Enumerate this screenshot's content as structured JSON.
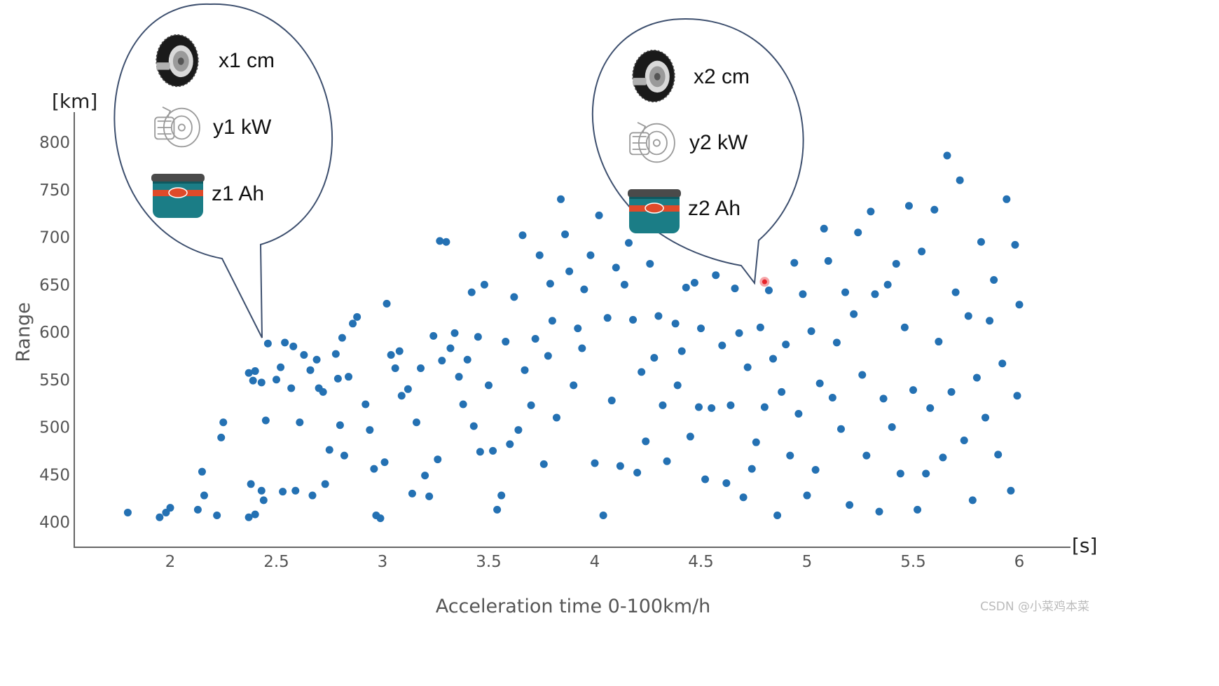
{
  "chart_data": {
    "type": "scatter",
    "xlabel": "Acceleration time 0-100km/h",
    "ylabel": "Range",
    "x_unit": "[s]",
    "y_unit": "[km]",
    "xlim": [
      1.55,
      6.25
    ],
    "ylim": [
      372,
      832
    ],
    "x_ticks": [
      2,
      2.5,
      3,
      3.5,
      4,
      4.5,
      5,
      5.5,
      6
    ],
    "y_ticks": [
      400,
      450,
      500,
      550,
      600,
      650,
      700,
      750,
      800
    ],
    "grid": false,
    "point_color": "#2471b3",
    "highlight_color": "#e8232a",
    "highlight_point": [
      4.8,
      653
    ],
    "points": [
      [
        1.8,
        410
      ],
      [
        1.95,
        405
      ],
      [
        1.98,
        410
      ],
      [
        2.0,
        415
      ],
      [
        2.13,
        413
      ],
      [
        2.15,
        453
      ],
      [
        2.16,
        428
      ],
      [
        2.22,
        407
      ],
      [
        2.24,
        489
      ],
      [
        2.25,
        505
      ],
      [
        2.37,
        405
      ],
      [
        2.37,
        557
      ],
      [
        2.38,
        440
      ],
      [
        2.39,
        549
      ],
      [
        2.4,
        408
      ],
      [
        2.4,
        559
      ],
      [
        2.43,
        433
      ],
      [
        2.43,
        547
      ],
      [
        2.44,
        423
      ],
      [
        2.45,
        507
      ],
      [
        2.46,
        588
      ],
      [
        2.5,
        550
      ],
      [
        2.52,
        563
      ],
      [
        2.53,
        432
      ],
      [
        2.54,
        589
      ],
      [
        2.57,
        541
      ],
      [
        2.58,
        585
      ],
      [
        2.59,
        433
      ],
      [
        2.61,
        505
      ],
      [
        2.63,
        576
      ],
      [
        2.66,
        560
      ],
      [
        2.67,
        428
      ],
      [
        2.69,
        571
      ],
      [
        2.7,
        541
      ],
      [
        2.72,
        537
      ],
      [
        2.73,
        440
      ],
      [
        2.75,
        476
      ],
      [
        2.78,
        577
      ],
      [
        2.79,
        551
      ],
      [
        2.8,
        502
      ],
      [
        2.81,
        594
      ],
      [
        2.82,
        470
      ],
      [
        2.84,
        553
      ],
      [
        2.86,
        609
      ],
      [
        2.88,
        616
      ],
      [
        2.92,
        524
      ],
      [
        2.94,
        497
      ],
      [
        2.96,
        456
      ],
      [
        2.97,
        407
      ],
      [
        2.99,
        404
      ],
      [
        3.01,
        463
      ],
      [
        3.02,
        630
      ],
      [
        3.04,
        576
      ],
      [
        3.06,
        562
      ],
      [
        3.08,
        580
      ],
      [
        3.09,
        533
      ],
      [
        3.12,
        540
      ],
      [
        3.14,
        430
      ],
      [
        3.16,
        505
      ],
      [
        3.18,
        562
      ],
      [
        3.2,
        449
      ],
      [
        3.22,
        427
      ],
      [
        3.24,
        596
      ],
      [
        3.26,
        466
      ],
      [
        3.27,
        696
      ],
      [
        3.28,
        570
      ],
      [
        3.3,
        695
      ],
      [
        3.32,
        583
      ],
      [
        3.34,
        599
      ],
      [
        3.36,
        553
      ],
      [
        3.38,
        524
      ],
      [
        3.4,
        571
      ],
      [
        3.42,
        642
      ],
      [
        3.43,
        501
      ],
      [
        3.45,
        595
      ],
      [
        3.46,
        474
      ],
      [
        3.48,
        650
      ],
      [
        3.5,
        544
      ],
      [
        3.52,
        475
      ],
      [
        3.54,
        413
      ],
      [
        3.56,
        428
      ],
      [
        3.58,
        590
      ],
      [
        3.6,
        482
      ],
      [
        3.62,
        637
      ],
      [
        3.64,
        497
      ],
      [
        3.66,
        702
      ],
      [
        3.67,
        560
      ],
      [
        3.7,
        523
      ],
      [
        3.72,
        593
      ],
      [
        3.74,
        681
      ],
      [
        3.76,
        461
      ],
      [
        3.78,
        575
      ],
      [
        3.79,
        651
      ],
      [
        3.8,
        612
      ],
      [
        3.82,
        510
      ],
      [
        3.84,
        740
      ],
      [
        3.86,
        703
      ],
      [
        3.88,
        664
      ],
      [
        3.9,
        544
      ],
      [
        3.92,
        604
      ],
      [
        3.94,
        583
      ],
      [
        3.95,
        645
      ],
      [
        3.98,
        681
      ],
      [
        4.0,
        462
      ],
      [
        4.02,
        723
      ],
      [
        4.04,
        407
      ],
      [
        4.06,
        615
      ],
      [
        4.08,
        528
      ],
      [
        4.1,
        668
      ],
      [
        4.12,
        459
      ],
      [
        4.14,
        650
      ],
      [
        4.16,
        694
      ],
      [
        4.18,
        613
      ],
      [
        4.2,
        452
      ],
      [
        4.22,
        558
      ],
      [
        4.24,
        485
      ],
      [
        4.26,
        672
      ],
      [
        4.28,
        573
      ],
      [
        4.3,
        617
      ],
      [
        4.32,
        523
      ],
      [
        4.34,
        464
      ],
      [
        4.36,
        718
      ],
      [
        4.38,
        609
      ],
      [
        4.39,
        544
      ],
      [
        4.41,
        580
      ],
      [
        4.43,
        647
      ],
      [
        4.45,
        490
      ],
      [
        4.47,
        652
      ],
      [
        4.49,
        521
      ],
      [
        4.5,
        604
      ],
      [
        4.52,
        445
      ],
      [
        4.55,
        520
      ],
      [
        4.57,
        660
      ],
      [
        4.6,
        586
      ],
      [
        4.62,
        441
      ],
      [
        4.64,
        523
      ],
      [
        4.66,
        646
      ],
      [
        4.68,
        599
      ],
      [
        4.7,
        426
      ],
      [
        4.72,
        563
      ],
      [
        4.74,
        456
      ],
      [
        4.76,
        484
      ],
      [
        4.78,
        605
      ],
      [
        4.8,
        521
      ],
      [
        4.82,
        644
      ],
      [
        4.84,
        572
      ],
      [
        4.86,
        407
      ],
      [
        4.88,
        537
      ],
      [
        4.9,
        587
      ],
      [
        4.92,
        470
      ],
      [
        4.94,
        673
      ],
      [
        4.96,
        514
      ],
      [
        4.98,
        640
      ],
      [
        5.0,
        428
      ],
      [
        5.02,
        601
      ],
      [
        5.04,
        455
      ],
      [
        5.06,
        546
      ],
      [
        5.08,
        709
      ],
      [
        5.1,
        675
      ],
      [
        5.12,
        531
      ],
      [
        5.14,
        589
      ],
      [
        5.16,
        498
      ],
      [
        5.18,
        642
      ],
      [
        5.2,
        418
      ],
      [
        5.22,
        619
      ],
      [
        5.24,
        705
      ],
      [
        5.26,
        555
      ],
      [
        5.28,
        470
      ],
      [
        5.3,
        727
      ],
      [
        5.32,
        640
      ],
      [
        5.34,
        411
      ],
      [
        5.36,
        530
      ],
      [
        5.38,
        650
      ],
      [
        5.4,
        500
      ],
      [
        5.42,
        672
      ],
      [
        5.44,
        451
      ],
      [
        5.46,
        605
      ],
      [
        5.48,
        733
      ],
      [
        5.5,
        539
      ],
      [
        5.52,
        413
      ],
      [
        5.54,
        685
      ],
      [
        5.56,
        451
      ],
      [
        5.58,
        520
      ],
      [
        5.6,
        729
      ],
      [
        5.62,
        590
      ],
      [
        5.64,
        468
      ],
      [
        5.66,
        786
      ],
      [
        5.68,
        537
      ],
      [
        5.7,
        642
      ],
      [
        5.72,
        760
      ],
      [
        5.74,
        486
      ],
      [
        5.76,
        617
      ],
      [
        5.78,
        423
      ],
      [
        5.8,
        552
      ],
      [
        5.82,
        695
      ],
      [
        5.84,
        510
      ],
      [
        5.86,
        612
      ],
      [
        5.88,
        655
      ],
      [
        5.9,
        471
      ],
      [
        5.92,
        567
      ],
      [
        5.94,
        740
      ],
      [
        5.96,
        433
      ],
      [
        5.98,
        692
      ],
      [
        5.99,
        533
      ],
      [
        6.0,
        629
      ]
    ]
  },
  "bubbles": [
    {
      "items": [
        {
          "icon": "tire-icon",
          "label": "x1 cm"
        },
        {
          "icon": "motor-icon",
          "label": "y1 kW"
        },
        {
          "icon": "battery-icon",
          "label": "z1 Ah"
        }
      ]
    },
    {
      "items": [
        {
          "icon": "tire-icon",
          "label": "x2 cm"
        },
        {
          "icon": "motor-icon",
          "label": "y2 kW"
        },
        {
          "icon": "battery-icon",
          "label": "z2 Ah"
        }
      ]
    }
  ],
  "watermark": "CSDN @小菜鸡本菜"
}
